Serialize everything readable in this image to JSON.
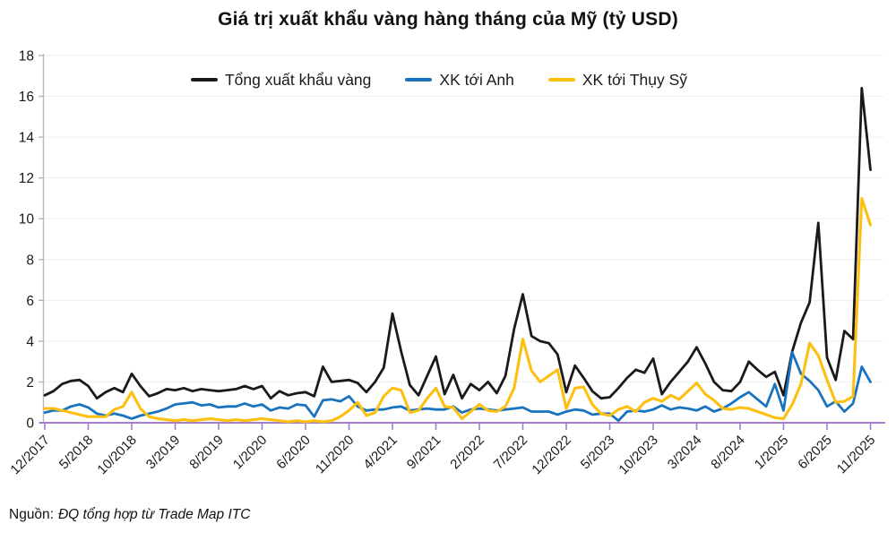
{
  "page": {
    "source_prefix": "Nguồn:",
    "source_text": "ĐQ tổng hợp từ Trade Map ITC"
  },
  "colors": {
    "total_line": "#1a1a1a",
    "uk_line": "#1973be",
    "swiss_line": "#fdc010",
    "axis_baseline": "#a57dcd",
    "gridline": "#ededed",
    "y_axis_line": "#b8b8b8",
    "text": "#1a1a1a"
  },
  "chart_data": {
    "type": "line",
    "title": "Giá trị xuất khẩu vàng hàng tháng của Mỹ (tỷ USD)",
    "xlabel": "",
    "ylabel": "",
    "ylim": [
      0,
      18
    ],
    "y_ticks": [
      0,
      2,
      4,
      6,
      8,
      10,
      12,
      14,
      16,
      18
    ],
    "grid": true,
    "legend_position": "top",
    "x_tick_every": 5,
    "x_tick_labels": [
      "12/2017",
      "5/2018",
      "10/2018",
      "3/2019",
      "8/2019",
      "1/2020",
      "6/2020",
      "11/2020",
      "4/2021",
      "9/2021",
      "2/2022",
      "7/2022",
      "12/2022",
      "5/2023",
      "10/2023",
      "3/2024",
      "8/2024",
      "1/2025",
      "6/2025",
      "11/2025"
    ],
    "x": [
      "12/2017",
      "1/2018",
      "2/2018",
      "3/2018",
      "4/2018",
      "5/2018",
      "6/2018",
      "7/2018",
      "8/2018",
      "9/2018",
      "10/2018",
      "11/2018",
      "12/2018",
      "1/2019",
      "2/2019",
      "3/2019",
      "4/2019",
      "5/2019",
      "6/2019",
      "7/2019",
      "8/2019",
      "9/2019",
      "10/2019",
      "11/2019",
      "12/2019",
      "1/2020",
      "2/2020",
      "3/2020",
      "4/2020",
      "5/2020",
      "6/2020",
      "7/2020",
      "8/2020",
      "9/2020",
      "10/2020",
      "11/2020",
      "12/2020",
      "1/2021",
      "2/2021",
      "3/2021",
      "4/2021",
      "5/2021",
      "6/2021",
      "7/2021",
      "8/2021",
      "9/2021",
      "10/2021",
      "11/2021",
      "12/2021",
      "1/2022",
      "2/2022",
      "3/2022",
      "4/2022",
      "5/2022",
      "6/2022",
      "7/2022",
      "8/2022",
      "9/2022",
      "10/2022",
      "11/2022",
      "12/2022",
      "1/2023",
      "2/2023",
      "3/2023",
      "4/2023",
      "5/2023",
      "6/2023",
      "7/2023",
      "8/2023",
      "9/2023",
      "10/2023",
      "11/2023",
      "12/2023",
      "1/2024",
      "2/2024",
      "3/2024",
      "4/2024",
      "5/2024",
      "6/2024",
      "7/2024",
      "8/2024",
      "9/2024",
      "10/2024",
      "11/2024",
      "12/2024",
      "1/2025",
      "2/2025",
      "3/2025",
      "4/2025",
      "5/2025",
      "6/2025",
      "7/2025",
      "8/2025",
      "9/2025",
      "10/2025",
      "11/2025"
    ],
    "series": [
      {
        "name": "Tổng xuất khẩu vàng",
        "color": "#1a1a1a",
        "stroke_width": 2.8,
        "values": [
          1.35,
          1.55,
          1.9,
          2.05,
          2.1,
          1.8,
          1.2,
          1.5,
          1.7,
          1.5,
          2.4,
          1.8,
          1.3,
          1.45,
          1.65,
          1.6,
          1.7,
          1.55,
          1.65,
          1.6,
          1.55,
          1.6,
          1.65,
          1.8,
          1.65,
          1.8,
          1.2,
          1.55,
          1.35,
          1.45,
          1.5,
          1.3,
          2.75,
          2.0,
          2.05,
          2.1,
          1.95,
          1.5,
          2.0,
          2.7,
          5.35,
          3.5,
          1.85,
          1.35,
          2.3,
          3.25,
          1.4,
          2.35,
          1.2,
          1.9,
          1.6,
          2.0,
          1.45,
          2.3,
          4.6,
          6.3,
          4.25,
          4.0,
          3.9,
          3.35,
          1.5,
          2.8,
          2.2,
          1.55,
          1.2,
          1.25,
          1.7,
          2.2,
          2.6,
          2.45,
          3.15,
          1.4,
          2.0,
          2.5,
          3.0,
          3.7,
          2.9,
          2.0,
          1.6,
          1.55,
          2.0,
          3.0,
          2.6,
          2.25,
          2.5,
          1.35,
          3.5,
          4.9,
          5.9,
          9.8,
          3.2,
          2.1,
          4.5,
          4.1,
          16.4,
          12.4
        ]
      },
      {
        "name": "XK tới Anh",
        "color": "#1973be",
        "stroke_width": 2.8,
        "values": [
          0.5,
          0.6,
          0.6,
          0.8,
          0.9,
          0.75,
          0.45,
          0.35,
          0.45,
          0.35,
          0.2,
          0.35,
          0.45,
          0.55,
          0.7,
          0.9,
          0.95,
          1.0,
          0.85,
          0.9,
          0.75,
          0.8,
          0.8,
          0.95,
          0.8,
          0.9,
          0.6,
          0.75,
          0.7,
          0.9,
          0.85,
          0.3,
          1.1,
          1.15,
          1.05,
          1.3,
          0.8,
          0.6,
          0.65,
          0.65,
          0.75,
          0.8,
          0.6,
          0.65,
          0.7,
          0.65,
          0.65,
          0.8,
          0.5,
          0.65,
          0.7,
          0.65,
          0.6,
          0.65,
          0.7,
          0.75,
          0.55,
          0.55,
          0.55,
          0.4,
          0.55,
          0.65,
          0.6,
          0.4,
          0.45,
          0.45,
          0.1,
          0.55,
          0.6,
          0.55,
          0.65,
          0.85,
          0.65,
          0.75,
          0.7,
          0.6,
          0.8,
          0.55,
          0.7,
          0.95,
          1.25,
          1.5,
          1.15,
          0.8,
          1.9,
          0.6,
          3.45,
          2.4,
          2.05,
          1.6,
          0.8,
          1.05,
          0.55,
          0.95,
          2.75,
          2.0
        ]
      },
      {
        "name": "XK tới Thụy Sỹ",
        "color": "#fdc010",
        "stroke_width": 3.1,
        "values": [
          0.7,
          0.7,
          0.6,
          0.5,
          0.4,
          0.3,
          0.3,
          0.3,
          0.65,
          0.8,
          1.5,
          0.7,
          0.3,
          0.2,
          0.15,
          0.1,
          0.15,
          0.1,
          0.15,
          0.2,
          0.15,
          0.1,
          0.15,
          0.1,
          0.15,
          0.2,
          0.15,
          0.1,
          0.05,
          0.1,
          0.05,
          0.1,
          0.05,
          0.1,
          0.3,
          0.6,
          1.0,
          0.35,
          0.5,
          1.3,
          1.7,
          1.6,
          0.5,
          0.6,
          1.2,
          1.7,
          0.8,
          0.75,
          0.2,
          0.55,
          0.9,
          0.6,
          0.55,
          0.8,
          1.7,
          4.1,
          2.55,
          2.0,
          2.3,
          2.6,
          0.7,
          1.7,
          1.75,
          0.9,
          0.45,
          0.35,
          0.65,
          0.8,
          0.55,
          1.0,
          1.2,
          1.05,
          1.35,
          1.15,
          1.55,
          1.95,
          1.4,
          1.1,
          0.7,
          0.65,
          0.75,
          0.7,
          0.55,
          0.4,
          0.25,
          0.2,
          0.9,
          1.9,
          3.9,
          3.3,
          2.1,
          1.0,
          1.05,
          1.3,
          11.0,
          9.7
        ]
      }
    ]
  }
}
